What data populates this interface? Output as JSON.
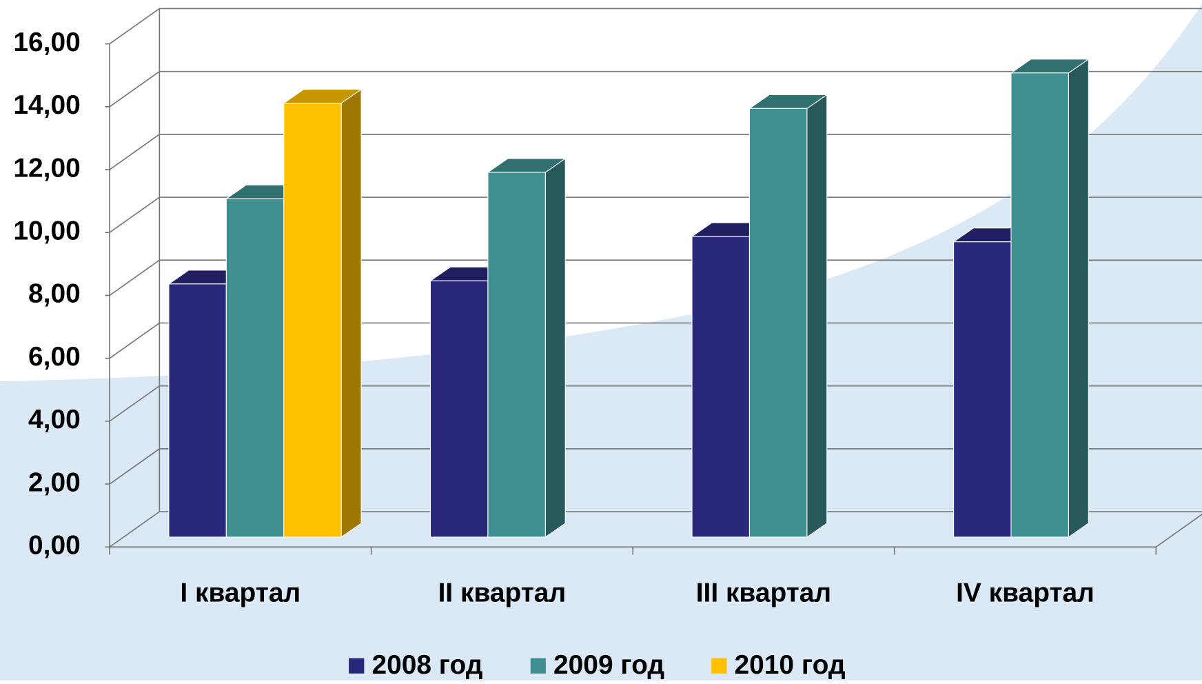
{
  "chart_data": {
    "type": "bar3d",
    "categories": [
      "I квартал",
      "II квартал",
      "III квартал",
      "IV квартал"
    ],
    "series": [
      {
        "name": "2008 год",
        "color": "#29287a",
        "values": [
          8.05,
          8.15,
          9.56,
          9.39
        ]
      },
      {
        "name": "2009 год",
        "color": "#3f8f91",
        "values": [
          10.76,
          11.6,
          13.63,
          14.76
        ]
      },
      {
        "name": "2010 год",
        "color": "#ffc000",
        "values": [
          13.8,
          null,
          null,
          null
        ]
      }
    ],
    "ylim": [
      0,
      16
    ],
    "yticks": [
      {
        "value": 0,
        "label": "0,00"
      },
      {
        "value": 2,
        "label": "2,00"
      },
      {
        "value": 4,
        "label": "4,00"
      },
      {
        "value": 6,
        "label": "6,00"
      },
      {
        "value": 8,
        "label": "8,00"
      },
      {
        "value": 10,
        "label": "10,00"
      },
      {
        "value": 12,
        "label": "12,00"
      },
      {
        "value": 14,
        "label": "14,00"
      },
      {
        "value": 16,
        "label": "16,00"
      }
    ],
    "grid": true,
    "legend": "bottom"
  }
}
